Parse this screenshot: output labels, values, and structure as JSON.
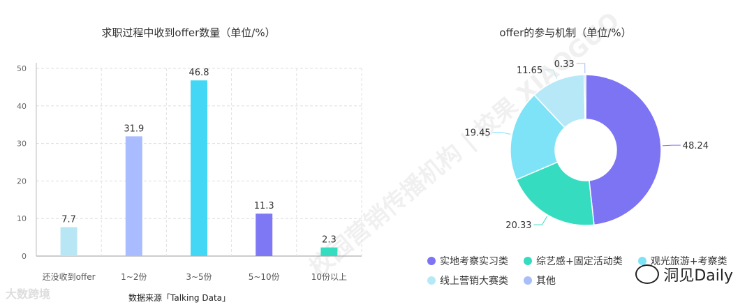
{
  "watermark": "校园营销传播机构 | 校果 XIAOGUO",
  "footer": {
    "source": "数据来源「Talking Data」",
    "logo": "大数跨境",
    "brand": "洞见Daily"
  },
  "chart_data": [
    {
      "type": "bar",
      "title": "求职过程中收到offer数量（单位/%）",
      "categories": [
        "还没收到offer",
        "1~2份",
        "3~5份",
        "5~10份",
        "10份以上"
      ],
      "values": [
        7.7,
        31.9,
        46.8,
        11.3,
        2.3
      ],
      "colors": [
        "#b9e6f5",
        "#a8bcff",
        "#44d7f5",
        "#7f78f5",
        "#35dcc0"
      ],
      "ylim": [
        0,
        50
      ],
      "yticks": [
        0,
        10,
        20,
        30,
        40,
        50
      ],
      "grid": true
    },
    {
      "type": "pie",
      "title": "offer的参与机制（单位/%）",
      "labels": [
        "实地考察实习类",
        "综艺感+固定活动类",
        "观光旅游+考察类",
        "线上营销大赛类",
        "其他"
      ],
      "values": [
        48.24,
        20.33,
        19.45,
        11.65,
        0.33
      ],
      "colors": [
        "#7d74f4",
        "#35dcc0",
        "#7fe3f8",
        "#b6e8f7",
        "#a9bdf8"
      ],
      "donut": true,
      "legend_position": "bottom"
    }
  ]
}
